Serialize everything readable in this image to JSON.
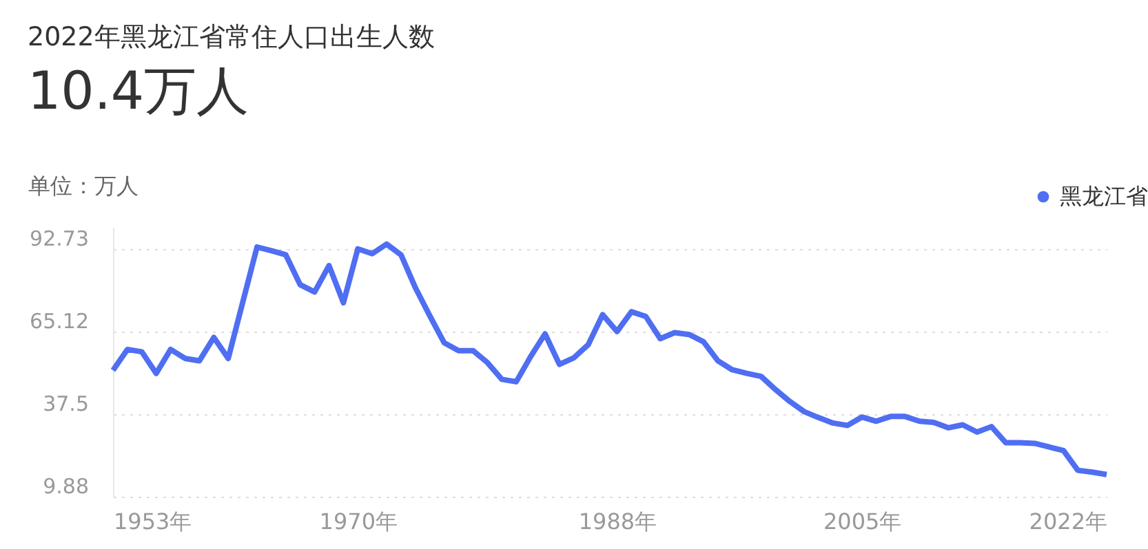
{
  "chart_data": {
    "type": "line",
    "title": "2022年黑龙江省常住人口出生人数",
    "subtitle": "10.4万人",
    "ylabel": "单位：万人",
    "x": [
      1953,
      1954,
      1955,
      1956,
      1957,
      1958,
      1959,
      1960,
      1961,
      1962,
      1963,
      1964,
      1965,
      1966,
      1967,
      1968,
      1969,
      1970,
      1971,
      1972,
      1973,
      1974,
      1975,
      1976,
      1977,
      1978,
      1979,
      1980,
      1981,
      1982,
      1983,
      1984,
      1985,
      1986,
      1987,
      1988,
      1989,
      1990,
      1991,
      1992,
      1993,
      1994,
      1995,
      1996,
      1997,
      1998,
      1999,
      2000,
      2001,
      2002,
      2003,
      2004,
      2005,
      2006,
      2007,
      2008,
      2009,
      2010,
      2011,
      2012,
      2013,
      2014,
      2015,
      2016,
      2017,
      2018,
      2019,
      2020,
      2021,
      2022
    ],
    "series": [
      {
        "name": "黑龙江省",
        "color": "#4f6ef2",
        "values": [
          52.1,
          59.1,
          58.3,
          51.1,
          59.1,
          56.1,
          55.3,
          63.1,
          56.1,
          74.7,
          93.3,
          92.1,
          90.7,
          80.7,
          78.3,
          87.1,
          74.7,
          92.7,
          91.1,
          94.3,
          90.7,
          79.7,
          70.3,
          61.3,
          58.7,
          58.7,
          54.7,
          49.1,
          48.3,
          56.7,
          64.3,
          54.1,
          56.3,
          60.7,
          70.7,
          65.1,
          71.7,
          70.1,
          62.7,
          64.7,
          64.1,
          61.7,
          55.3,
          52.3,
          51.1,
          50.1,
          45.7,
          41.7,
          38.3,
          36.3,
          34.5,
          33.7,
          36.5,
          35.1,
          36.7,
          36.7,
          35.1,
          34.7,
          32.9,
          33.9,
          31.5,
          33.3,
          27.9,
          27.9,
          27.7,
          26.5,
          25.3,
          18.7,
          18.1,
          17.3
        ]
      }
    ],
    "xlim": [
      1953,
      2022
    ],
    "xticks": [
      {
        "value": 1953,
        "label": "1953年"
      },
      {
        "value": 1970,
        "label": "1970年"
      },
      {
        "value": 1988,
        "label": "1988年"
      },
      {
        "value": 2005,
        "label": "2005年"
      },
      {
        "value": 2022,
        "label": "2022年"
      }
    ],
    "ylim": [
      9.88,
      100
    ],
    "yticks": [
      9.88,
      37.5,
      65.12,
      92.73
    ],
    "grid": "y",
    "legend": "top right",
    "marker": "none",
    "line_style": "solid"
  }
}
